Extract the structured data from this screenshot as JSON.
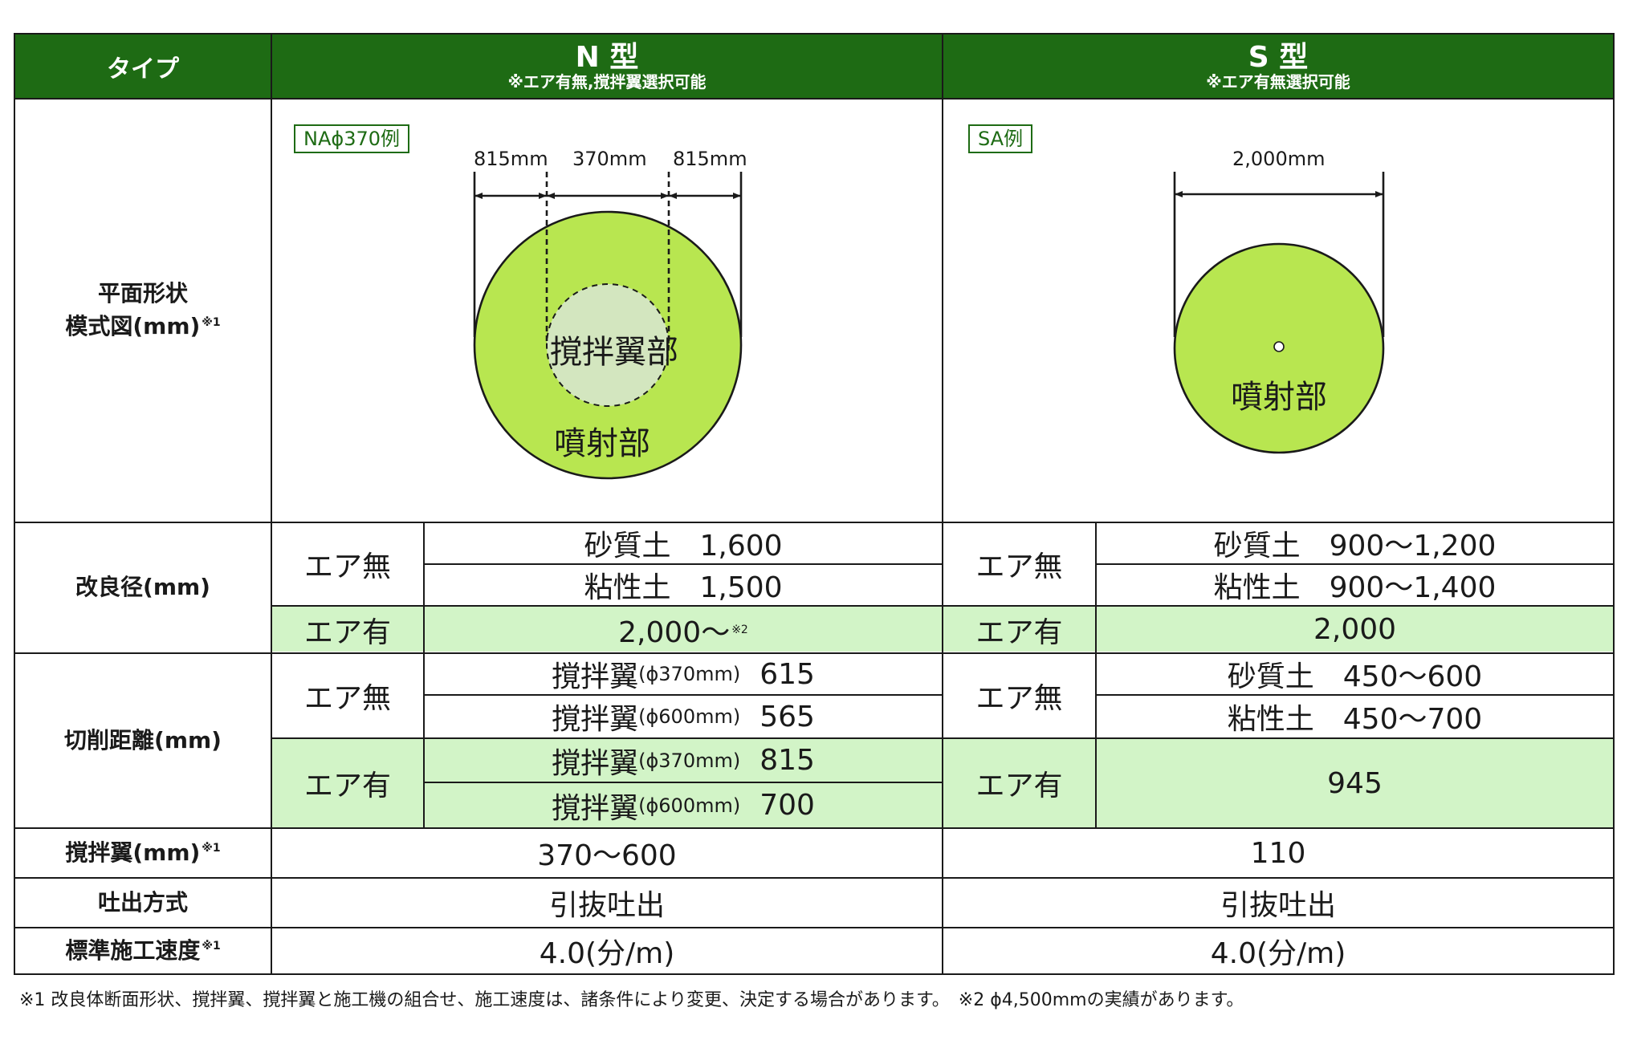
{
  "header": {
    "type_label": "タイプ",
    "n_title": "N 型",
    "n_note": "※エア有無,撹拌翼選択可能",
    "s_title": "S 型",
    "s_note": "※エア有無選択可能"
  },
  "rows": {
    "plan_label_1": "平面形状",
    "plan_label_2": "模式図(mm)",
    "plan_sup": "※1",
    "kairyo_label": "改良径(mm)",
    "kousaku_label": "切削距離(mm)",
    "kakuhan_label": "撹拌翼(mm)",
    "tohshutsu_label": "吐出方式",
    "speed_label": "標準施工速度",
    "speed_sup": "※1",
    "kakuhan_sup": "※1"
  },
  "diagram_n": {
    "tag": "NAϕ370例",
    "dim_left": "815mm",
    "dim_mid": "370mm",
    "dim_right": "815mm",
    "inner_label": "撹拌翼部",
    "outer_label": "噴射部"
  },
  "diagram_s": {
    "tag": "SA例",
    "dim": "2,000mm",
    "label": "噴射部"
  },
  "kairyo": {
    "air_none": "エア無",
    "air_yes": "エア有",
    "n_sand": "砂質土　1,600",
    "n_clay": "粘性土　1,500",
    "n_air": "2,000〜",
    "n_air_sup": "※2",
    "s_sand": "砂質土　900〜1,200",
    "s_clay": "粘性土　900〜1,400",
    "s_air": "2,000"
  },
  "kousaku": {
    "air_none": "エア無",
    "air_yes": "エア有",
    "blade": "撹拌翼",
    "n_none_1_dia": "(ϕ370mm)",
    "n_none_1_val": "615",
    "n_none_2_dia": "(ϕ600mm)",
    "n_none_2_val": "565",
    "n_yes_1_dia": "(ϕ370mm)",
    "n_yes_1_val": "815",
    "n_yes_2_dia": "(ϕ600mm)",
    "n_yes_2_val": "700",
    "s_sand": "砂質土　450〜600",
    "s_clay": "粘性土　450〜700",
    "s_air": "945"
  },
  "kakuhan": {
    "n": "370〜600",
    "s": "110"
  },
  "tohshutsu": {
    "n": "引抜吐出",
    "s": "引抜吐出"
  },
  "speed": {
    "n": "4.0(分/m)",
    "s": "4.0(分/m)"
  },
  "footnote": "※1 改良体断面形状、撹拌翼、撹拌翼と施工機の組合せ、施工速度は、諸条件により変更、決定する場合があります。　※2 ϕ4,500mmの実績があります。",
  "colors": {
    "header_green": "#1e6b14",
    "light_green": "#d2f4c7",
    "circle_green": "#b8e650",
    "inner_green": "#d3e6bf"
  }
}
